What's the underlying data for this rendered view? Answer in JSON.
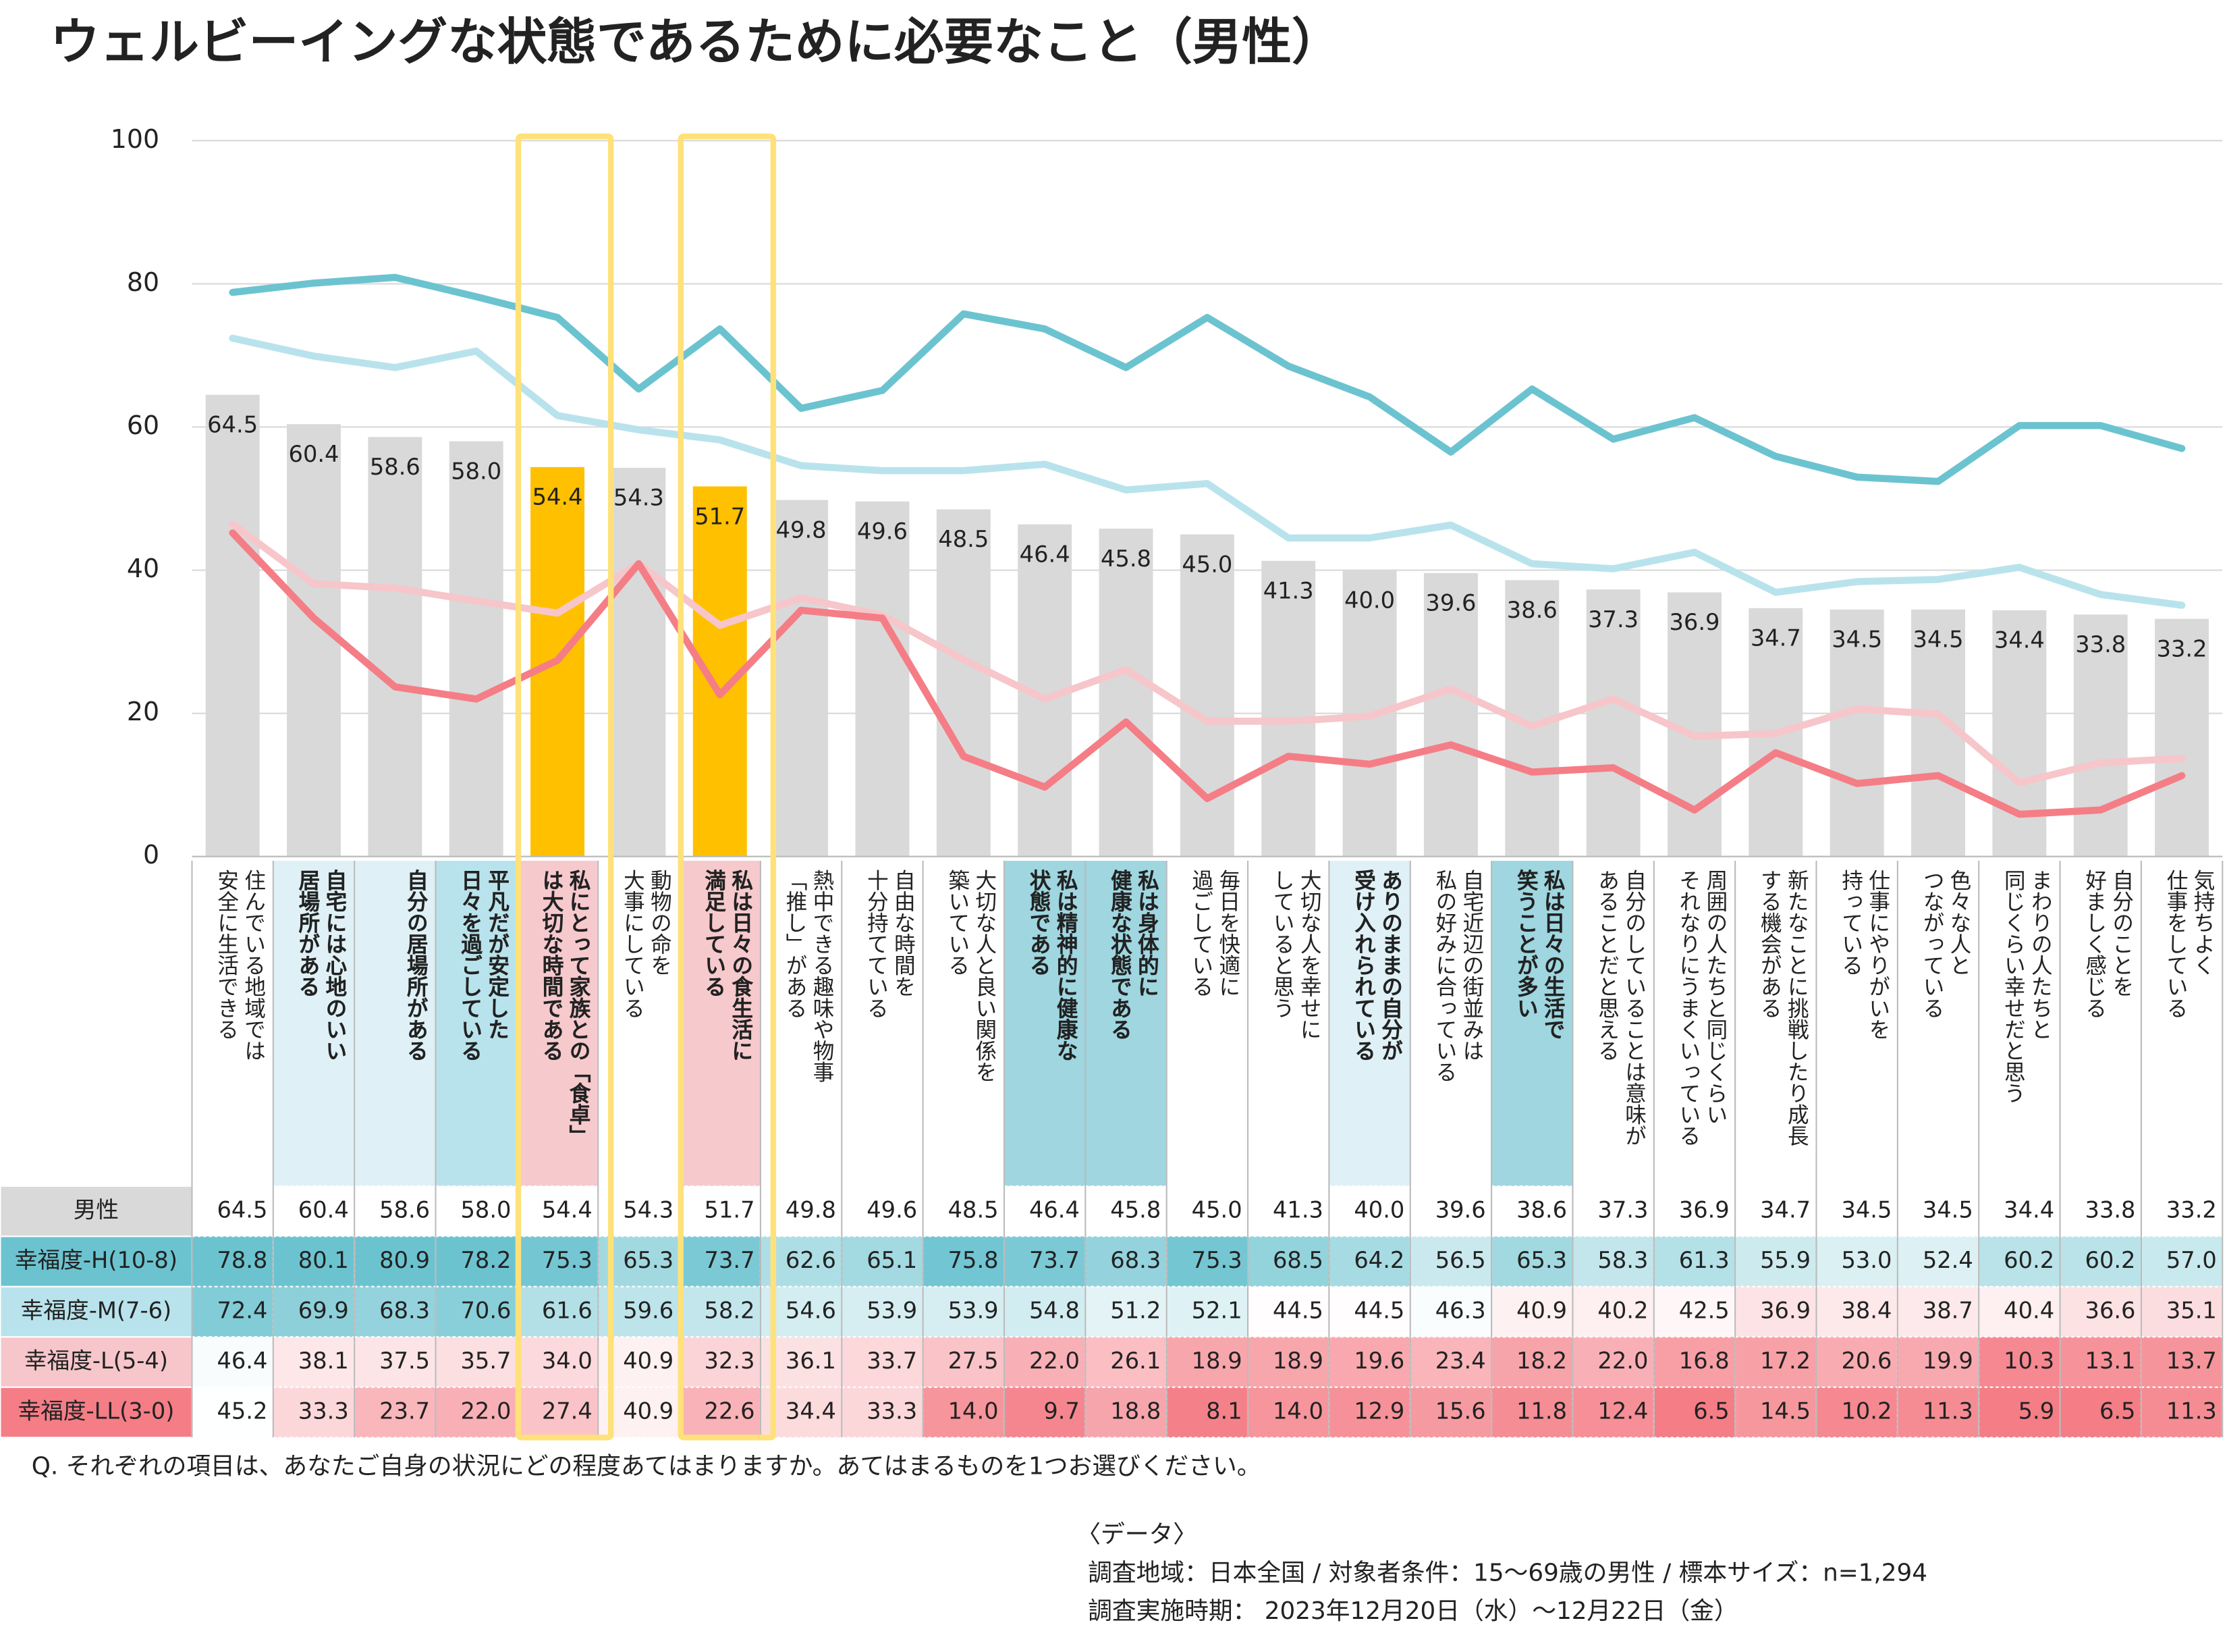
{
  "chart_data": {
    "type": "bar",
    "title": "ウェルビーイングな状態であるために必要なこと（男性）",
    "categories": [
      "住んでいる地域では\n安全に生活できる",
      "自宅には心地のいい\n居場所がある",
      "自分の居場所がある",
      "平凡だが安定した\n日々を過ごしている",
      "私にとって家族との「食卓」\nは大切な時間である",
      "動物の命を\n大事にしている",
      "私は日々の食生活に\n満足している",
      "熱中できる趣味や物事\n「推し」がある",
      "自由な時間を\n十分持てている",
      "大切な人と良い関係を\n築いている",
      "私は精神的に健康な\n状態である",
      "私は身体的に\n健康な状態である",
      "毎日を快適に\n過ごしている",
      "大切な人を幸せに\nしていると思う",
      "ありのままの自分が\n受け入れられている",
      "自宅近辺の街並みは\n私の好みに合っている",
      "私は日々の生活で\n笑うことが多い",
      "自分のしていることは意味が\nあることだと思える",
      "周囲の人たちと同じくらい\nそれなりにうまくいっている",
      "新たなことに挑戦したり成長\nする機会がある",
      "仕事にやりがいを\n持っている",
      "色々な人と\nつながっている",
      "まわりの人たちと\n同じくらい幸せだと思う",
      "自分のことを\n好ましく感じる",
      "気持ちよく\n仕事をしている"
    ],
    "ylim": [
      0,
      100
    ],
    "yticks": [
      0,
      20,
      40,
      60,
      80,
      100
    ],
    "grid": true,
    "series": [
      {
        "name": "男性",
        "type": "bar",
        "color": "#d9d9d9",
        "highlight_color": "#ffc000",
        "values": [
          64.5,
          60.4,
          58.6,
          58.0,
          54.4,
          54.3,
          51.7,
          49.8,
          49.6,
          48.5,
          46.4,
          45.8,
          45.0,
          41.3,
          40.0,
          39.6,
          38.6,
          37.3,
          36.9,
          34.7,
          34.5,
          34.5,
          34.4,
          33.8,
          33.2
        ],
        "value_labels": [
          "64.5",
          "60.4",
          "58.6",
          "58.0",
          "54.4",
          "54.3",
          "51.7",
          "49.8",
          "49.6",
          "48.5",
          "46.4",
          "45.8",
          "45.0",
          "41.3",
          "40.0",
          "39.6",
          "38.6",
          "37.3",
          "36.9",
          "34.7",
          "34.5",
          "34.5",
          "34.4",
          "33.8",
          "33.2"
        ]
      },
      {
        "name": "幸福度-H(10-8)",
        "type": "line",
        "color": "#6cc3d0",
        "values": [
          78.8,
          80.1,
          80.9,
          78.2,
          75.3,
          65.3,
          73.7,
          62.6,
          65.1,
          75.8,
          73.7,
          68.3,
          75.3,
          68.5,
          64.2,
          56.5,
          65.3,
          58.3,
          61.3,
          55.9,
          53.0,
          52.4,
          60.2,
          60.2,
          57.0
        ],
        "value_labels": [
          "78.8",
          "80.1",
          "80.9",
          "78.2",
          "75.3",
          "65.3",
          "73.7",
          "62.6",
          "65.1",
          "75.8",
          "73.7",
          "68.3",
          "75.3",
          "68.5",
          "64.2",
          "56.5",
          "65.3",
          "58.3",
          "61.3",
          "55.9",
          "53.0",
          "52.4",
          "60.2",
          "60.2",
          "57.0"
        ]
      },
      {
        "name": "幸福度-M(7-6)",
        "type": "line",
        "color": "#b9e3ec",
        "values": [
          72.4,
          69.9,
          68.3,
          70.6,
          61.6,
          59.6,
          58.2,
          54.6,
          53.9,
          53.9,
          54.8,
          51.2,
          52.1,
          44.5,
          44.5,
          46.3,
          40.9,
          40.2,
          42.5,
          36.9,
          38.4,
          38.7,
          40.4,
          36.6,
          35.1
        ],
        "value_labels": [
          "72.4",
          "69.9",
          "68.3",
          "70.6",
          "61.6",
          "59.6",
          "58.2",
          "54.6",
          "53.9",
          "53.9",
          "54.8",
          "51.2",
          "52.1",
          "44.5",
          "44.5",
          "46.3",
          "40.9",
          "40.2",
          "42.5",
          "36.9",
          "38.4",
          "38.7",
          "40.4",
          "36.6",
          "35.1"
        ]
      },
      {
        "name": "幸福度-L(5-4)",
        "type": "line",
        "color": "#f6c6ca",
        "values": [
          46.4,
          38.1,
          37.5,
          35.7,
          34.0,
          40.9,
          32.3,
          36.1,
          33.7,
          27.5,
          22.0,
          26.1,
          18.9,
          18.9,
          19.6,
          23.4,
          18.2,
          22.0,
          16.8,
          17.2,
          20.6,
          19.9,
          10.3,
          13.1,
          13.7
        ],
        "value_labels": [
          "46.4",
          "38.1",
          "37.5",
          "35.7",
          "34.0",
          "40.9",
          "32.3",
          "36.1",
          "33.7",
          "27.5",
          "22.0",
          "26.1",
          "18.9",
          "18.9",
          "19.6",
          "23.4",
          "18.2",
          "22.0",
          "16.8",
          "17.2",
          "20.6",
          "19.9",
          "10.3",
          "13.1",
          "13.7"
        ]
      },
      {
        "name": "幸福度-LL(3-0)",
        "type": "line",
        "color": "#f47d86",
        "values": [
          45.2,
          33.3,
          23.7,
          22.0,
          27.4,
          40.9,
          22.6,
          34.4,
          33.3,
          14.0,
          9.7,
          18.8,
          8.1,
          14.0,
          12.9,
          15.6,
          11.8,
          12.4,
          6.5,
          14.5,
          10.2,
          11.3,
          5.9,
          6.5,
          11.3
        ],
        "value_labels": [
          "45.2",
          "33.3",
          "23.7",
          "22.0",
          "27.4",
          "40.9",
          "22.6",
          "34.4",
          "33.3",
          "14.0",
          "9.7",
          "18.8",
          "8.1",
          "14.0",
          "12.9",
          "15.6",
          "11.8",
          "12.4",
          "6.5",
          "14.5",
          "10.2",
          "11.3",
          "5.9",
          "6.5",
          "11.3"
        ]
      }
    ],
    "question": "Q. それぞれの項目は、あなたご自身の状況にどの程度あてはまりますか。あてはまるものを1つお選びください。",
    "data_heading": "〈データ〉",
    "data_notes": [
      "調査地域：日本全国 / 対象者条件：15～69歳の男性 / 標本サイズ：n=1,294",
      "調査実施時期： 2023年12月20日（水）～12月22日（金）"
    ]
  }
}
